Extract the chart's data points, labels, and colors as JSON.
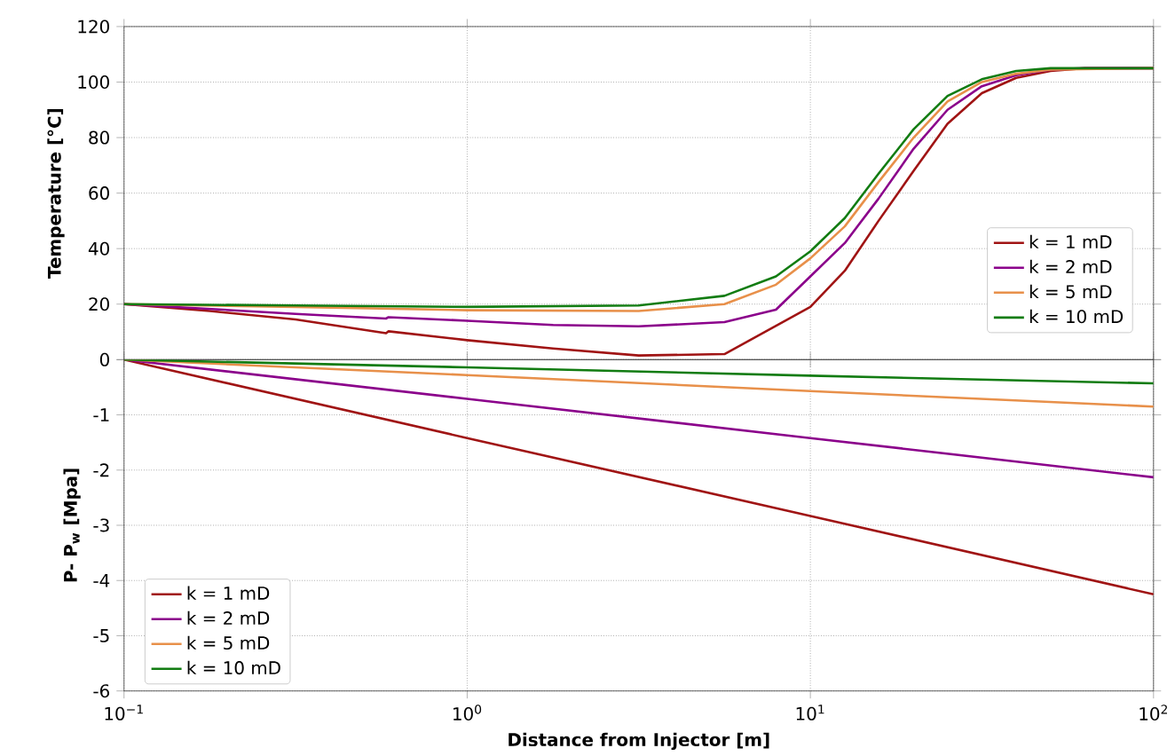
{
  "chart_data": [
    {
      "type": "line",
      "ylabel": "Temperature [°C]",
      "log": "x",
      "xlim": [
        0.1,
        100
      ],
      "ylim": [
        0,
        120
      ],
      "xticks": [
        {
          "value": 0.1,
          "label": null
        },
        {
          "value": 1,
          "label": null
        },
        {
          "value": 10,
          "label": null
        },
        {
          "value": 100,
          "label": null
        }
      ],
      "yticks": [
        0,
        20,
        40,
        60,
        80,
        100,
        120
      ],
      "grid": true,
      "legend": "bottom right",
      "tick_labels": "y",
      "series": [
        {
          "name": "k = 1 mD",
          "color": "#a01414",
          "x": [
            0.1,
            0.178,
            0.316,
            0.58,
            0.59,
            1,
            1.78,
            3.16,
            5.62,
            10,
            12.6,
            15.8,
            20,
            25.1,
            31.6,
            39.8,
            50.1,
            63.1,
            100
          ],
          "values": [
            20,
            17.5,
            14.5,
            9.5,
            10.2,
            7,
            4,
            1.5,
            2,
            19,
            32,
            50,
            68,
            85,
            96,
            101.5,
            104,
            105,
            105
          ]
        },
        {
          "name": "k = 2 mD",
          "color": "#8b008b",
          "x": [
            0.1,
            0.316,
            0.58,
            0.59,
            1,
            1.78,
            3.16,
            5.62,
            7.94,
            10,
            12.6,
            15.8,
            20,
            25.1,
            31.6,
            39.8,
            50.1,
            63.1,
            100
          ],
          "values": [
            20,
            16.5,
            14.8,
            15.3,
            14,
            12.5,
            12,
            13.5,
            18,
            30,
            42,
            58,
            76,
            90,
            98.5,
            102.5,
            104.5,
            105,
            105
          ]
        },
        {
          "name": "k = 5 mD",
          "color": "#e8904a",
          "x": [
            0.1,
            0.316,
            1,
            3.16,
            5.62,
            7.94,
            10,
            12.6,
            15.8,
            20,
            25.1,
            31.6,
            39.8,
            50.1,
            100
          ],
          "values": [
            20,
            19,
            17.8,
            17.5,
            20,
            27,
            36.5,
            48,
            64,
            80,
            93,
            100,
            103,
            104.5,
            105
          ]
        },
        {
          "name": "k = 10 mD",
          "color": "#127c12",
          "x": [
            0.1,
            0.316,
            1,
            3.16,
            5.62,
            7.94,
            10,
            12.6,
            15.8,
            20,
            25.1,
            31.6,
            39.8,
            50.1,
            100
          ],
          "values": [
            20,
            19.5,
            19,
            19.5,
            23,
            30,
            39,
            51,
            67,
            83,
            95,
            101,
            104,
            105,
            105
          ]
        }
      ]
    },
    {
      "type": "line",
      "xlabel": "Distance from Injector [m]",
      "ylabel": "P- P$_{w}$ [Mpa]",
      "log": "x",
      "xlim": [
        0.1,
        100
      ],
      "ylim": [
        -6,
        0
      ],
      "xticks": [
        {
          "value": 0.1,
          "label": "10$^{−1}$"
        },
        {
          "value": 1,
          "label": "10$^{0}$"
        },
        {
          "value": 10,
          "label": "10$^{1}$"
        },
        {
          "value": 100,
          "label": "10$^{2}$"
        }
      ],
      "yticks": [
        -6,
        -5,
        -4,
        -3,
        -2,
        -1,
        {
          "value": 0,
          "label": null
        }
      ],
      "grid": true,
      "legend": "bottom left",
      "series": [
        {
          "name": "k = 1 mD",
          "color": "#a01414",
          "x": [
            0.1,
            1,
            10,
            100
          ],
          "values": [
            0,
            -1.42,
            -2.83,
            -4.25
          ]
        },
        {
          "name": "k = 2 mD",
          "color": "#8b008b",
          "x": [
            0.1,
            1,
            10,
            100
          ],
          "values": [
            0,
            -0.71,
            -1.42,
            -2.13
          ]
        },
        {
          "name": "k = 5 mD",
          "color": "#e8904a",
          "x": [
            0.1,
            1,
            10,
            100
          ],
          "values": [
            0,
            -0.28,
            -0.57,
            -0.85
          ]
        },
        {
          "name": "k = 10 mD",
          "color": "#127c12",
          "x": [
            0.1,
            1,
            10,
            100
          ],
          "values": [
            0,
            -0.14,
            -0.29,
            -0.43
          ]
        }
      ]
    }
  ]
}
